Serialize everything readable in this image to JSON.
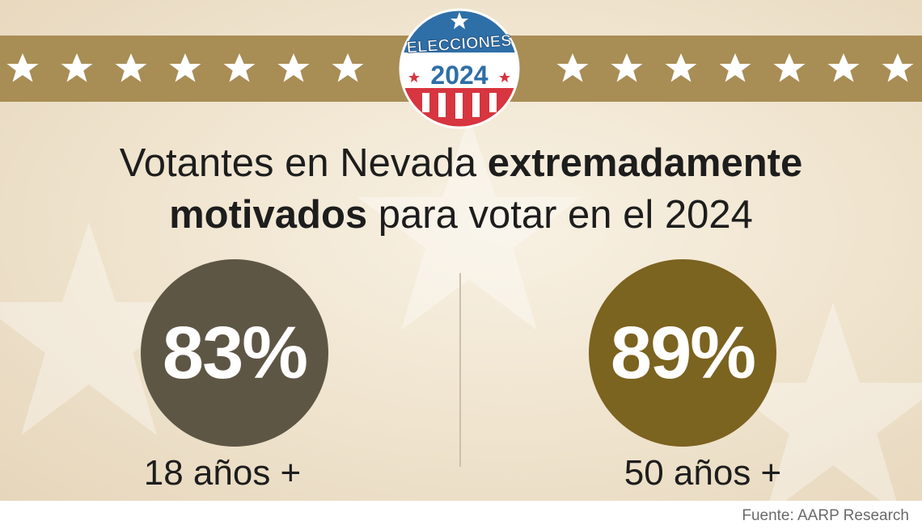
{
  "badge": {
    "line1": "ELECCIONES",
    "line2": "2024"
  },
  "headline": {
    "part1": "Votantes en Nevada ",
    "bold1": "extremadamente",
    "bold2": "motivados",
    "part2": " para votar en el 2024"
  },
  "chart_data": {
    "type": "table",
    "categories": [
      "18 años +",
      "50 años +"
    ],
    "values": [
      83,
      89
    ],
    "labels": [
      "83%",
      "89%"
    ],
    "unit": "%",
    "colors": [
      "#5e5645",
      "#7b6320"
    ]
  },
  "source": "Fuente: AARP Research",
  "colors": {
    "band": "#a88d55",
    "badge_blue": "#2e6fa8",
    "badge_red": "#d7353f"
  }
}
